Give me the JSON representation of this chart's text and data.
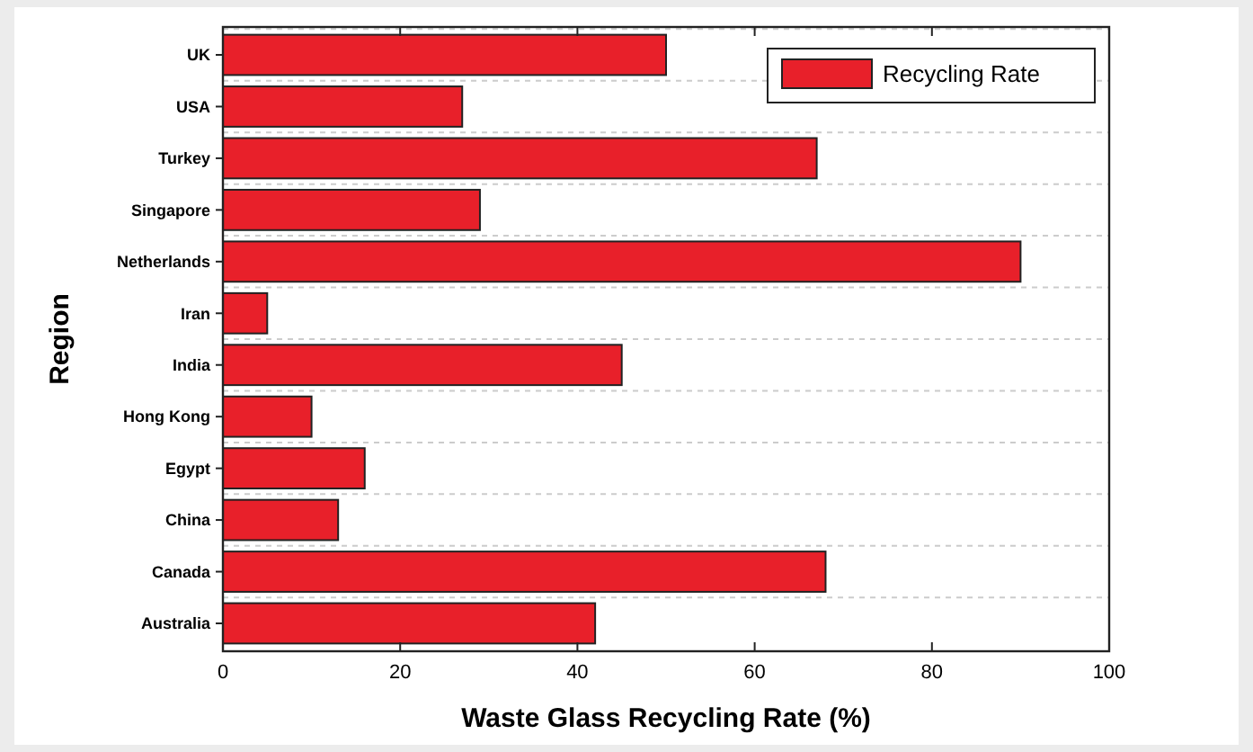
{
  "chart_data": {
    "type": "bar",
    "orientation": "horizontal",
    "xlabel": "Waste Glass Recycling Rate (%)",
    "ylabel": "Region",
    "categories": [
      "UK",
      "USA",
      "Turkey",
      "Singapore",
      "Netherlands",
      "Iran",
      "India",
      "Hong Kong",
      "Egypt",
      "China",
      "Canada",
      "Australia"
    ],
    "series": [
      {
        "name": "Recycling Rate",
        "color": "#e8202a",
        "values": [
          50,
          27,
          67,
          29,
          90,
          5,
          45,
          10,
          16,
          13,
          68,
          42
        ]
      }
    ],
    "xlim": [
      0,
      100
    ],
    "xticks": [
      0,
      20,
      40,
      60,
      80,
      100
    ],
    "grid": "y",
    "legend": "top right"
  }
}
